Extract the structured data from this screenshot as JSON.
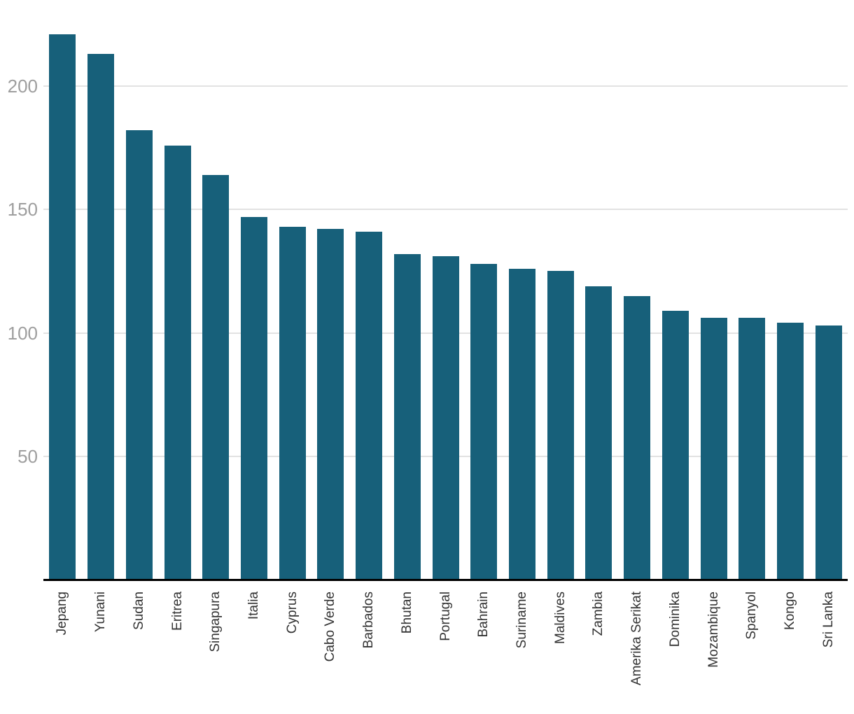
{
  "chart_data": {
    "type": "bar",
    "title": "",
    "xlabel": "",
    "ylabel": "",
    "categories": [
      "Jepang",
      "Yunani",
      "Sudan",
      "Eritrea",
      "Singapura",
      "Italia",
      "Cyprus",
      "Cabo Verde",
      "Barbados",
      "Bhutan",
      "Portugal",
      "Bahrain",
      "Suriname",
      "Maldives",
      "Zambia",
      "Amerika Serikat",
      "Dominika",
      "Mozambique",
      "Spanyol",
      "Kongo",
      "Sri Lanka"
    ],
    "values": [
      221,
      213,
      182,
      176,
      164,
      147,
      143,
      142,
      141,
      132,
      131,
      128,
      126,
      125,
      119,
      115,
      109,
      106,
      106,
      104,
      103
    ],
    "yticks": [
      50,
      100,
      150,
      200
    ],
    "ylim": [
      0,
      235
    ],
    "grid": true,
    "legend": false,
    "bar_orientation": "vertical",
    "x_label_rotation_deg": -90,
    "colors": {
      "bar": "#17607A",
      "grid_line": "#E2E2E2",
      "y_tick_label": "#9E9E9E",
      "x_tick_label": "#333333",
      "axis_line": "#000000",
      "background": "#FFFFFF"
    }
  }
}
